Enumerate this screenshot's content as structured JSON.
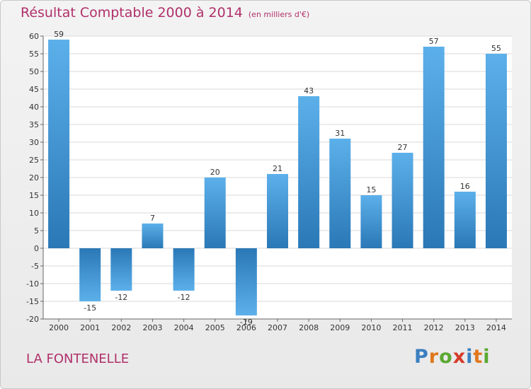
{
  "title": "Résultat Comptable 2000 à 2014",
  "subtitle": "(en milliers d'€)",
  "location": "LA FONTENELLE",
  "brand": {
    "text": "Proxiti",
    "letter_colors": [
      "#3a7fc0",
      "#e0781e",
      "#5aa832",
      "#d63a2a",
      "#3a7fc0",
      "#e0781e",
      "#5aa832"
    ]
  },
  "colors": {
    "bar_dark": "#2a78b6",
    "bar_light": "#5cb0ea",
    "accent_text": "#b0306a",
    "grid": "#d8d8d8"
  },
  "chart_data": {
    "type": "bar",
    "title": "Résultat Comptable 2000 à 2014",
    "subtitle": "(en milliers d'€)",
    "categories": [
      "2000",
      "2001",
      "2002",
      "2003",
      "2004",
      "2005",
      "2006",
      "2007",
      "2008",
      "2009",
      "2010",
      "2011",
      "2012",
      "2013",
      "2014"
    ],
    "values": [
      59,
      -15,
      -12,
      7,
      -12,
      20,
      -19,
      21,
      43,
      31,
      15,
      27,
      57,
      16,
      55
    ],
    "value_labels": [
      "59",
      "-15",
      "-12",
      "7",
      "-12",
      "20",
      "-19",
      "21",
      "43",
      "31",
      "15",
      "27",
      "57",
      "16",
      "55"
    ],
    "ylim": [
      -20,
      60
    ],
    "yticks": [
      60,
      55,
      50,
      45,
      40,
      35,
      30,
      25,
      20,
      15,
      10,
      5,
      0,
      -5,
      -10,
      -15,
      -20
    ],
    "xlabel": "",
    "ylabel": "",
    "grid": true,
    "legend": "none"
  }
}
